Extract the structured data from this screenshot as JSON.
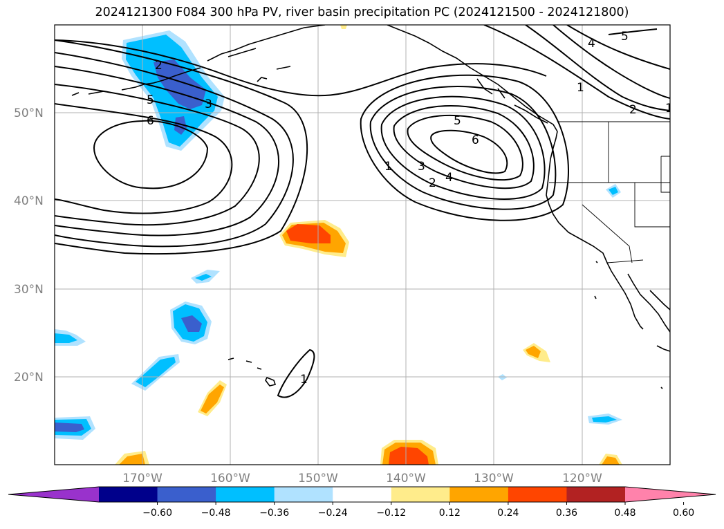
{
  "title": "2024121300 F084 300 hPa PV, river basin precipitation PC (2024121500 - 2024121800)",
  "lat_labels": [
    "50°N",
    "40°N",
    "30°N",
    "20°N"
  ],
  "lon_labels": [
    "170°W",
    "160°W",
    "150°W",
    "140°W",
    "130°W",
    "120°W"
  ],
  "contour_labels": [
    "2",
    "3",
    "5",
    "6",
    "1",
    "2",
    "3",
    "4",
    "5",
    "6",
    "1",
    "4",
    "5",
    "1",
    "2",
    "1"
  ],
  "colorbar": {
    "ticks": [
      "−0.60",
      "−0.48",
      "−0.36",
      "−0.24",
      "−0.12",
      "0.12",
      "0.24",
      "0.36",
      "0.48",
      "0.60"
    ],
    "colors": [
      "#9932cc",
      "#00008b",
      "#3a5fcd",
      "#00bfff",
      "#b0e2ff",
      "#ffffff",
      "#ffec8b",
      "#ffa500",
      "#ff4500",
      "#b22222",
      "#ff82ab"
    ]
  },
  "colors": {
    "land_outline": "#000000",
    "grid": "#b0b0b0"
  }
}
